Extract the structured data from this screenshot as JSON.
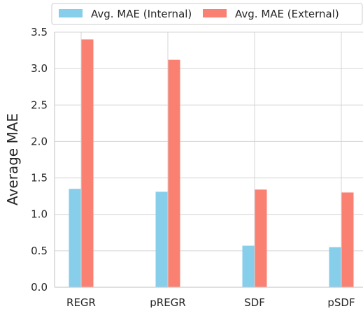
{
  "chart_data": {
    "type": "bar",
    "title": "",
    "xlabel": "",
    "ylabel": "Average MAE",
    "categories": [
      "REGR",
      "pREGR",
      "SDF",
      "pSDF"
    ],
    "series": [
      {
        "name": "Avg. MAE (Internal)",
        "color": "#87ceeb",
        "values": [
          1.35,
          1.31,
          0.57,
          0.55
        ]
      },
      {
        "name": "Avg. MAE (External)",
        "color": "#fa8072",
        "values": [
          3.4,
          3.12,
          1.34,
          1.3
        ]
      }
    ],
    "ylim": [
      0,
      3.5
    ],
    "yticks": [
      "0.0",
      "0.5",
      "1.0",
      "1.5",
      "2.0",
      "2.5",
      "3.0",
      "3.5"
    ],
    "grid": true,
    "legend_position": "top"
  }
}
